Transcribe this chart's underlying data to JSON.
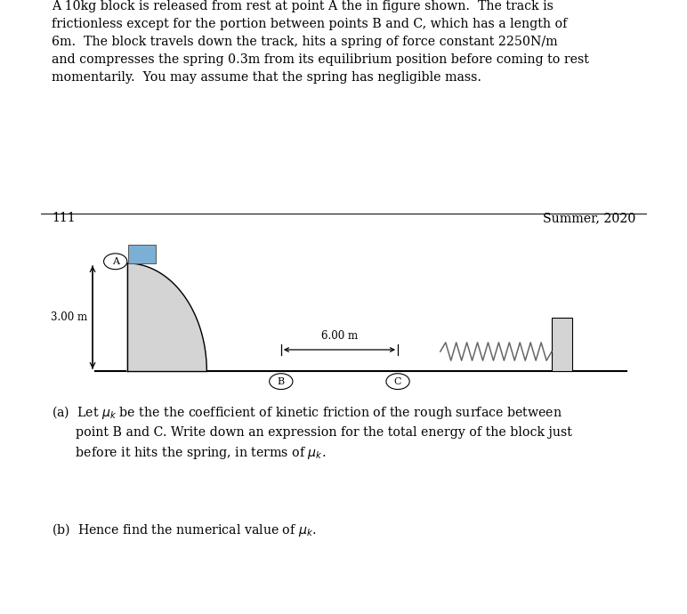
{
  "title_text": "A 10kg block is released from rest at point A the in figure shown.  The track is\nfrictionless except for the portion between points B and C, which has a length of\n6m.  The block travels down the track, hits a spring of force constant 2250N/m\nand compresses the spring 0.3m from its equilibrium position before coming to rest\nmomentarily.  You may assume that the spring has negligible mass.",
  "page_number": "111",
  "semester": "Summer, 2020",
  "height_label": "3.00 m",
  "width_label": "6.00 m",
  "bg_color": "#ffffff",
  "track_fill": "#d4d4d4",
  "block_fill": "#7bafd4",
  "wall_fill": "#d4d4d4",
  "spring_color": "#666666",
  "q_a_line1": "(a)  Let $\\mu_k$ be the the coefficient of kinetic friction of the rough surface between",
  "q_a_line2": "      point B and C. Write down an expression for the total energy of the block just",
  "q_a_line3": "      before it hits the spring, in terms of $\\mu_k$.",
  "q_b_line": "(b)  Hence find the numerical value of $\\mu_k$."
}
